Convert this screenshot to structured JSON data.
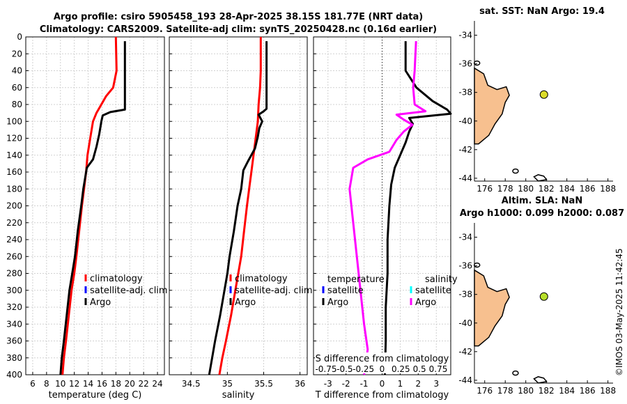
{
  "header": {
    "title_line1": "Argo profile: csiro 5905458_193 28-Apr-2025 38.15S 181.77E (NRT data)",
    "title_line2": "Climatology: CARS2009. Satellite-adj clim: synTS_20250428.nc (0.16d earlier)"
  },
  "depth_ticks": [
    "0",
    "20",
    "40",
    "60",
    "80",
    "100",
    "120",
    "140",
    "160",
    "180",
    "200",
    "220",
    "240",
    "260",
    "280",
    "300",
    "320",
    "340",
    "360",
    "380",
    "400"
  ],
  "chart_data": [
    {
      "type": "line",
      "name": "temperature",
      "xlabel": "temperature (deg C)",
      "ylabel": "",
      "xlim": [
        5,
        25
      ],
      "ylim": [
        400,
        0
      ],
      "xticks": [
        "6",
        "8",
        "10",
        "12",
        "14",
        "16",
        "18",
        "20",
        "22",
        "24"
      ],
      "legend": [
        "climatology",
        "satellite-adj. clim",
        "Argo"
      ],
      "series": [
        {
          "name": "climatology",
          "color": "#ff0000",
          "points": [
            [
              18.0,
              0
            ],
            [
              18.05,
              20
            ],
            [
              18.1,
              40
            ],
            [
              17.6,
              60
            ],
            [
              16.6,
              70
            ],
            [
              15.9,
              80
            ],
            [
              15.2,
              90
            ],
            [
              14.7,
              100
            ],
            [
              14.3,
              120
            ],
            [
              13.9,
              140
            ],
            [
              13.7,
              160
            ],
            [
              13.4,
              180
            ],
            [
              13.1,
              200
            ],
            [
              12.7,
              230
            ],
            [
              12.3,
              260
            ],
            [
              12.0,
              280
            ],
            [
              11.6,
              300
            ],
            [
              11.2,
              330
            ],
            [
              10.8,
              360
            ],
            [
              10.5,
              380
            ],
            [
              10.3,
              400
            ]
          ]
        },
        {
          "name": "Argo",
          "color": "#000000",
          "points": [
            [
              19.3,
              5
            ],
            [
              19.3,
              20
            ],
            [
              19.3,
              40
            ],
            [
              19.3,
              60
            ],
            [
              19.3,
              86
            ],
            [
              18.6,
              87
            ],
            [
              17.2,
              89
            ],
            [
              16.1,
              93
            ],
            [
              15.9,
              100
            ],
            [
              15.6,
              115
            ],
            [
              15.2,
              130
            ],
            [
              14.7,
              145
            ],
            [
              13.8,
              155
            ],
            [
              13.3,
              180
            ],
            [
              13.0,
              200
            ],
            [
              12.5,
              230
            ],
            [
              12.1,
              260
            ],
            [
              11.7,
              280
            ],
            [
              11.3,
              300
            ],
            [
              10.9,
              330
            ],
            [
              10.5,
              360
            ],
            [
              10.2,
              380
            ],
            [
              10.0,
              400
            ]
          ]
        }
      ]
    },
    {
      "type": "line",
      "name": "salinity",
      "xlabel": "salinity",
      "ylabel": "",
      "xlim": [
        34.2,
        36.1
      ],
      "ylim": [
        400,
        0
      ],
      "xticks": [
        "34.5",
        "35",
        "35.5",
        "36"
      ],
      "legend": [
        "climatology",
        "satellite-adj. clim",
        "Argo"
      ],
      "series": [
        {
          "name": "climatology",
          "color": "#ff0000",
          "points": [
            [
              35.46,
              0
            ],
            [
              35.46,
              20
            ],
            [
              35.46,
              40
            ],
            [
              35.45,
              60
            ],
            [
              35.43,
              80
            ],
            [
              35.42,
              100
            ],
            [
              35.39,
              120
            ],
            [
              35.36,
              140
            ],
            [
              35.33,
              160
            ],
            [
              35.3,
              180
            ],
            [
              35.27,
              200
            ],
            [
              35.23,
              230
            ],
            [
              35.19,
              260
            ],
            [
              35.15,
              280
            ],
            [
              35.11,
              300
            ],
            [
              35.05,
              330
            ],
            [
              34.98,
              360
            ],
            [
              34.93,
              380
            ],
            [
              34.89,
              400
            ]
          ]
        },
        {
          "name": "Argo",
          "color": "#000000",
          "points": [
            [
              35.54,
              5
            ],
            [
              35.54,
              40
            ],
            [
              35.54,
              60
            ],
            [
              35.54,
              85
            ],
            [
              35.5,
              88
            ],
            [
              35.43,
              92
            ],
            [
              35.48,
              100
            ],
            [
              35.44,
              108
            ],
            [
              35.42,
              118
            ],
            [
              35.38,
              132
            ],
            [
              35.28,
              148
            ],
            [
              35.22,
              158
            ],
            [
              35.19,
              180
            ],
            [
              35.14,
              200
            ],
            [
              35.09,
              230
            ],
            [
              35.03,
              260
            ],
            [
              35.0,
              280
            ],
            [
              34.96,
              300
            ],
            [
              34.9,
              330
            ],
            [
              34.83,
              360
            ],
            [
              34.79,
              380
            ],
            [
              34.75,
              400
            ]
          ]
        }
      ]
    },
    {
      "type": "line",
      "name": "difference",
      "xlabel": "T difference from climatology",
      "top_label": "S difference from climatology",
      "top_ticks": [
        "-0.75",
        "-0.5",
        "-0.25",
        "0",
        "0.25",
        "0.5",
        "0.75"
      ],
      "xlim": [
        -3.8,
        3.8
      ],
      "ylim": [
        400,
        0
      ],
      "xticks": [
        "-3",
        "-2",
        "-1",
        "0",
        "1",
        "2",
        "3"
      ],
      "legend_temperature_title": "temperature",
      "legend_temperature": [
        "satellite",
        "Argo"
      ],
      "legend_salinity_title": "salinity",
      "legend_salinity": [
        "satellite",
        "Argo"
      ],
      "series": [
        {
          "name": "T Argo",
          "color": "#000000",
          "points": [
            [
              1.3,
              5
            ],
            [
              1.3,
              40
            ],
            [
              1.9,
              60
            ],
            [
              2.8,
              76
            ],
            [
              3.6,
              86
            ],
            [
              3.8,
              91
            ],
            [
              1.5,
              96
            ],
            [
              1.7,
              103
            ],
            [
              1.5,
              112
            ],
            [
              1.3,
              125
            ],
            [
              1.0,
              140
            ],
            [
              0.7,
              155
            ],
            [
              0.5,
              175
            ],
            [
              0.4,
              200
            ],
            [
              0.3,
              240
            ],
            [
              0.3,
              280
            ],
            [
              0.2,
              320
            ],
            [
              0.2,
              360
            ],
            [
              0.15,
              400
            ]
          ]
        },
        {
          "name": "S Argo",
          "color": "#ff00ff",
          "points": [
            [
              0.47,
              5
            ],
            [
              0.45,
              40
            ],
            [
              0.43,
              60
            ],
            [
              0.45,
              80
            ],
            [
              0.6,
              88
            ],
            [
              0.2,
              92
            ],
            [
              0.3,
              98
            ],
            [
              0.42,
              104
            ],
            [
              0.3,
              112
            ],
            [
              0.2,
              122
            ],
            [
              0.1,
              136
            ],
            [
              -0.2,
              145
            ],
            [
              -0.4,
              155
            ],
            [
              -0.45,
              180
            ],
            [
              -0.4,
              220
            ],
            [
              -0.35,
              260
            ],
            [
              -0.3,
              300
            ],
            [
              -0.25,
              340
            ],
            [
              -0.2,
              370
            ],
            [
              -0.25,
              400
            ]
          ]
        }
      ]
    }
  ],
  "map_top": {
    "title": "sat. SST: NaN Argo: 19.4",
    "yticks": [
      "-34",
      "-36",
      "-38",
      "-40",
      "-42",
      "-44"
    ],
    "xticks": [
      "176",
      "178",
      "180",
      "182",
      "184",
      "186",
      "188"
    ],
    "marker_color": "#dcdc2a",
    "argo_lon": 181.77,
    "argo_lat": -38.15
  },
  "map_bottom": {
    "title_line1": "Altim. SLA: NaN",
    "title_line2": "Argo h1000: 0.099 h2000: 0.087",
    "yticks": [
      "-34",
      "-36",
      "-38",
      "-40",
      "-42",
      "-44"
    ],
    "xticks": [
      "176",
      "178",
      "180",
      "182",
      "184",
      "186",
      "188"
    ],
    "marker_color": "#b7df2a",
    "argo_lon": 181.77,
    "argo_lat": -38.15
  },
  "stamp": "©IMOS 03-May-2025 11:42:45",
  "colors": {
    "climatology": "#ff0000",
    "satellite": "#0000ff",
    "argo": "#000000",
    "s_satellite": "#00ffff",
    "s_argo": "#ff00ff",
    "land": "#f7c08f"
  }
}
